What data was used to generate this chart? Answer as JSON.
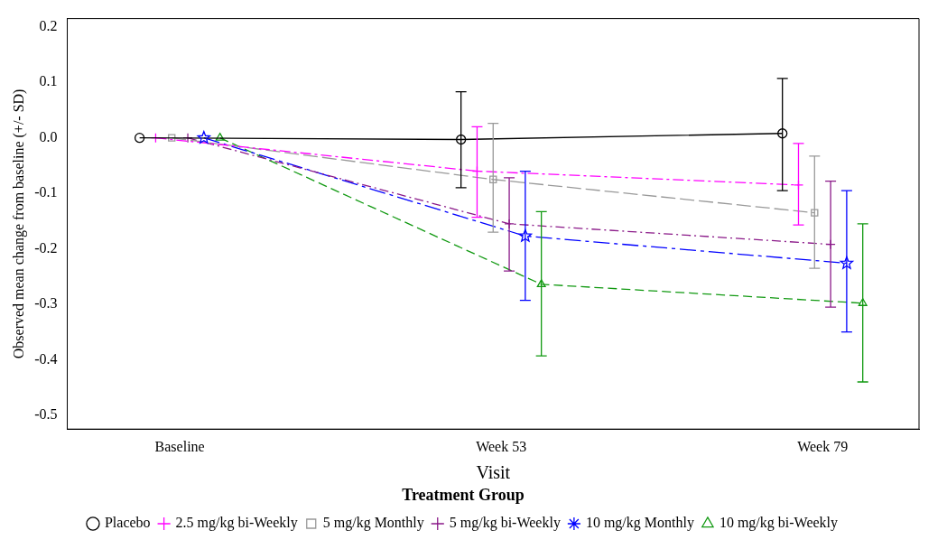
{
  "chart_data": {
    "type": "line",
    "xlabel": "Visit",
    "ylabel": "Observed mean change from baseline (+/- SD)",
    "legend_title": "Treatment Group",
    "legend": "bottom",
    "grid": false,
    "categories": [
      "Baseline",
      "Week 53",
      "Week 79"
    ],
    "ylim": [
      -0.525,
      0.215
    ],
    "yticks": [
      0.2,
      0.1,
      {
        "value": 0,
        "label": "0.0"
      },
      -0.1,
      -0.2,
      -0.3,
      -0.4,
      -0.5
    ],
    "series": [
      {
        "name": "Placebo",
        "color": "#000000",
        "marker": "circle",
        "line_style": "solid",
        "values": [
          0,
          -0.003,
          0.008
        ],
        "errors": [
          null,
          [
            -0.09,
            0.083
          ],
          [
            -0.095,
            0.107
          ]
        ]
      },
      {
        "name": "2.5 mg/kg bi-Weekly",
        "color": "#ff00ff",
        "marker": "cross",
        "line_style": "dashed",
        "values": [
          0,
          -0.06,
          -0.085
        ],
        "errors": [
          null,
          [
            -0.143,
            0.02
          ],
          [
            -0.157,
            -0.01
          ]
        ]
      },
      {
        "name": "5 mg/kg Monthly",
        "color": "#999999",
        "marker": "square",
        "line_style": "dashed",
        "values": [
          0,
          -0.075,
          -0.135
        ],
        "errors": [
          null,
          [
            -0.17,
            0.026
          ],
          [
            -0.235,
            -0.033
          ]
        ]
      },
      {
        "name": "5 mg/kg bi-Weekly",
        "color": "#8b1a89",
        "marker": "cross",
        "line_style": "dashed",
        "values": [
          0,
          -0.155,
          -0.192
        ],
        "errors": [
          null,
          [
            -0.24,
            -0.072
          ],
          [
            -0.305,
            -0.078
          ]
        ]
      },
      {
        "name": "10 mg/kg Monthly",
        "color": "#0000ff",
        "marker": "star",
        "line_style": "dashed",
        "values": [
          0,
          -0.177,
          -0.226
        ],
        "errors": [
          null,
          [
            -0.293,
            -0.06
          ],
          [
            -0.35,
            -0.095
          ]
        ]
      },
      {
        "name": "10 mg/kg bi-Weekly",
        "color": "#119911",
        "marker": "triangle",
        "line_style": "dashed",
        "values": [
          0,
          -0.264,
          -0.298
        ],
        "errors": [
          null,
          [
            -0.393,
            -0.133
          ],
          [
            -0.44,
            -0.155
          ]
        ]
      }
    ]
  }
}
